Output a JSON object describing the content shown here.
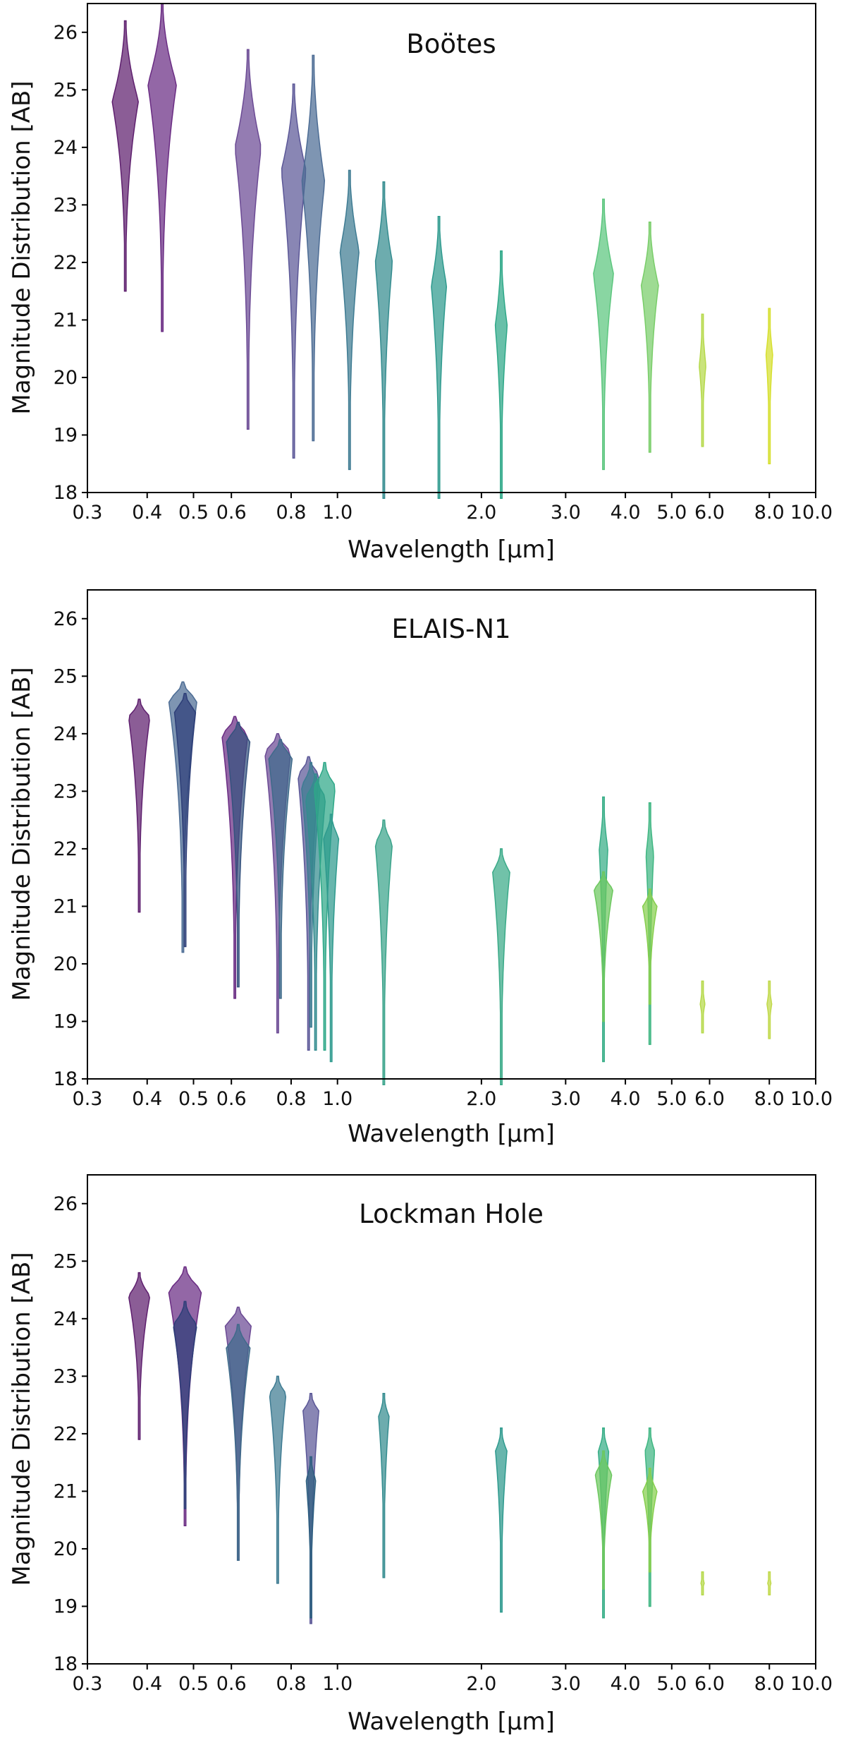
{
  "figure": {
    "xlabel": "Wavelength [μm]",
    "ylabel": "Magnitude Distribution [AB]"
  },
  "chart_data": [
    {
      "type": "violin",
      "title": "Boötes",
      "xlabel": "Wavelength [μm]",
      "ylabel": "Magnitude Distribution [AB]",
      "xscale": "log",
      "xlim": [
        0.3,
        10.0
      ],
      "ylim": [
        18,
        26.5
      ],
      "xticks": [
        0.3,
        0.4,
        0.5,
        0.6,
        0.8,
        1.0,
        2.0,
        3.0,
        4.0,
        5.0,
        6.0,
        8.0,
        10.0
      ],
      "xtick_labels": [
        "0.3",
        "0.4",
        "0.5",
        "0.6",
        "0.8",
        "1.0",
        "2.0",
        "3.0",
        "4.0",
        "5.0",
        "6.0",
        "8.0",
        "10.0"
      ],
      "yticks": [
        18,
        19,
        20,
        21,
        22,
        23,
        24,
        25,
        26
      ],
      "ytick_labels": [
        "18",
        "19",
        "20",
        "21",
        "22",
        "23",
        "24",
        "25",
        "26"
      ],
      "violins": [
        {
          "wavelength": 0.36,
          "min": 21.5,
          "max": 26.2,
          "peak": 24.8,
          "width": 0.055,
          "color": "#5e1f6e"
        },
        {
          "wavelength": 0.43,
          "min": 20.8,
          "max": 26.5,
          "peak": 25.1,
          "width": 0.06,
          "color": "#6a2c83"
        },
        {
          "wavelength": 0.65,
          "min": 19.1,
          "max": 25.7,
          "peak": 24.0,
          "width": 0.055,
          "color": "#6b4a94"
        },
        {
          "wavelength": 0.81,
          "min": 18.6,
          "max": 25.1,
          "peak": 23.6,
          "width": 0.052,
          "color": "#5b5797"
        },
        {
          "wavelength": 0.89,
          "min": 18.9,
          "max": 25.6,
          "peak": 23.4,
          "width": 0.048,
          "color": "#4c6c94"
        },
        {
          "wavelength": 1.06,
          "min": 18.4,
          "max": 23.6,
          "peak": 22.2,
          "width": 0.04,
          "color": "#3e7b92"
        },
        {
          "wavelength": 1.25,
          "min": 17.9,
          "max": 23.4,
          "peak": 22.0,
          "width": 0.036,
          "color": "#348c8f"
        },
        {
          "wavelength": 1.63,
          "min": 17.9,
          "max": 22.8,
          "peak": 21.6,
          "width": 0.032,
          "color": "#2e9a8e"
        },
        {
          "wavelength": 2.2,
          "min": 17.9,
          "max": 22.2,
          "peak": 20.9,
          "width": 0.025,
          "color": "#2ea888"
        },
        {
          "wavelength": 3.6,
          "min": 18.4,
          "max": 23.1,
          "peak": 21.8,
          "width": 0.042,
          "color": "#5cc67e"
        },
        {
          "wavelength": 4.5,
          "min": 18.7,
          "max": 22.7,
          "peak": 21.6,
          "width": 0.036,
          "color": "#79cd69"
        },
        {
          "wavelength": 5.8,
          "min": 18.8,
          "max": 21.1,
          "peak": 20.2,
          "width": 0.014,
          "color": "#b5d94a"
        },
        {
          "wavelength": 8.0,
          "min": 18.5,
          "max": 21.2,
          "peak": 20.4,
          "width": 0.014,
          "color": "#d6df2e"
        }
      ]
    },
    {
      "type": "violin",
      "title": "ELAIS-N1",
      "xlabel": "Wavelength [μm]",
      "ylabel": "Magnitude Distribution [AB]",
      "xscale": "log",
      "xlim": [
        0.3,
        10.0
      ],
      "ylim": [
        18,
        26.5
      ],
      "xticks": [
        0.3,
        0.4,
        0.5,
        0.6,
        0.8,
        1.0,
        2.0,
        3.0,
        4.0,
        5.0,
        6.0,
        8.0,
        10.0
      ],
      "xtick_labels": [
        "0.3",
        "0.4",
        "0.5",
        "0.6",
        "0.8",
        "1.0",
        "2.0",
        "3.0",
        "4.0",
        "5.0",
        "6.0",
        "8.0",
        "10.0"
      ],
      "yticks": [
        18,
        19,
        20,
        21,
        22,
        23,
        24,
        25,
        26
      ],
      "ytick_labels": [
        "18",
        "19",
        "20",
        "21",
        "22",
        "23",
        "24",
        "25",
        "26"
      ],
      "violins": [
        {
          "wavelength": 0.385,
          "min": 20.9,
          "max": 24.6,
          "peak": 24.3,
          "width": 0.045,
          "color": "#5e1f6e"
        },
        {
          "wavelength": 0.475,
          "min": 20.2,
          "max": 24.9,
          "peak": 24.6,
          "width": 0.06,
          "color": "#4c6c94"
        },
        {
          "wavelength": 0.48,
          "min": 20.3,
          "max": 24.7,
          "peak": 24.4,
          "width": 0.045,
          "color": "#2e3f78"
        },
        {
          "wavelength": 0.61,
          "min": 19.4,
          "max": 24.3,
          "peak": 24.0,
          "width": 0.055,
          "color": "#6a2c83"
        },
        {
          "wavelength": 0.62,
          "min": 19.6,
          "max": 24.2,
          "peak": 23.9,
          "width": 0.05,
          "color": "#35527e"
        },
        {
          "wavelength": 0.75,
          "min": 18.8,
          "max": 24.0,
          "peak": 23.7,
          "width": 0.055,
          "color": "#6b4a94"
        },
        {
          "wavelength": 0.76,
          "min": 19.4,
          "max": 23.9,
          "peak": 23.6,
          "width": 0.05,
          "color": "#3f6a8a"
        },
        {
          "wavelength": 0.87,
          "min": 18.5,
          "max": 23.6,
          "peak": 23.3,
          "width": 0.045,
          "color": "#5b5797"
        },
        {
          "wavelength": 0.88,
          "min": 18.9,
          "max": 23.5,
          "peak": 23.1,
          "width": 0.04,
          "color": "#3e7b92"
        },
        {
          "wavelength": 0.9,
          "min": 18.5,
          "max": 23.3,
          "peak": 22.9,
          "width": 0.042,
          "color": "#348c8f"
        },
        {
          "wavelength": 0.94,
          "min": 18.5,
          "max": 23.5,
          "peak": 23.1,
          "width": 0.045,
          "color": "#2ea888"
        },
        {
          "wavelength": 0.97,
          "min": 18.3,
          "max": 22.6,
          "peak": 22.2,
          "width": 0.032,
          "color": "#2e9a8e"
        },
        {
          "wavelength": 1.25,
          "min": 17.9,
          "max": 22.5,
          "peak": 22.1,
          "width": 0.036,
          "color": "#3aa38a"
        },
        {
          "wavelength": 2.2,
          "min": 17.9,
          "max": 22.0,
          "peak": 21.6,
          "width": 0.036,
          "color": "#3aaa88"
        },
        {
          "wavelength": 3.6,
          "min": 18.3,
          "max": 22.9,
          "peak": 22.0,
          "width": 0.018,
          "color": "#36ad86"
        },
        {
          "wavelength": 3.6,
          "min": 19.0,
          "max": 21.6,
          "peak": 21.3,
          "width": 0.04,
          "color": "#6cc75e"
        },
        {
          "wavelength": 4.5,
          "min": 18.6,
          "max": 22.8,
          "peak": 21.9,
          "width": 0.016,
          "color": "#3fb682"
        },
        {
          "wavelength": 4.5,
          "min": 19.3,
          "max": 21.3,
          "peak": 21.0,
          "width": 0.03,
          "color": "#86ce4e"
        },
        {
          "wavelength": 5.8,
          "min": 18.8,
          "max": 19.7,
          "peak": 19.3,
          "width": 0.01,
          "color": "#b5d94a"
        },
        {
          "wavelength": 8.0,
          "min": 18.7,
          "max": 19.7,
          "peak": 19.3,
          "width": 0.01,
          "color": "#c1d94a"
        }
      ]
    },
    {
      "type": "violin",
      "title": "Lockman Hole",
      "xlabel": "Wavelength [μm]",
      "ylabel": "Magnitude Distribution [AB]",
      "xscale": "log",
      "xlim": [
        0.3,
        10.0
      ],
      "ylim": [
        18,
        26.5
      ],
      "xticks": [
        0.3,
        0.4,
        0.5,
        0.6,
        0.8,
        1.0,
        2.0,
        3.0,
        4.0,
        5.0,
        6.0,
        8.0,
        10.0
      ],
      "xtick_labels": [
        "0.3",
        "0.4",
        "0.5",
        "0.6",
        "0.8",
        "1.0",
        "2.0",
        "3.0",
        "4.0",
        "5.0",
        "6.0",
        "8.0",
        "10.0"
      ],
      "yticks": [
        18,
        19,
        20,
        21,
        22,
        23,
        24,
        25,
        26
      ],
      "ytick_labels": [
        "18",
        "19",
        "20",
        "21",
        "22",
        "23",
        "24",
        "25",
        "26"
      ],
      "violins": [
        {
          "wavelength": 0.385,
          "min": 21.9,
          "max": 24.8,
          "peak": 24.4,
          "width": 0.045,
          "color": "#5e1f6e"
        },
        {
          "wavelength": 0.48,
          "min": 20.4,
          "max": 24.9,
          "peak": 24.5,
          "width": 0.07,
          "color": "#6a2c83"
        },
        {
          "wavelength": 0.48,
          "min": 20.7,
          "max": 24.3,
          "peak": 23.9,
          "width": 0.05,
          "color": "#2e3f78"
        },
        {
          "wavelength": 0.62,
          "min": 19.8,
          "max": 24.2,
          "peak": 23.9,
          "width": 0.055,
          "color": "#6b4a94"
        },
        {
          "wavelength": 0.62,
          "min": 19.8,
          "max": 23.9,
          "peak": 23.5,
          "width": 0.05,
          "color": "#3f6a8a"
        },
        {
          "wavelength": 0.75,
          "min": 19.4,
          "max": 23.0,
          "peak": 22.7,
          "width": 0.035,
          "color": "#3e7b92"
        },
        {
          "wavelength": 0.88,
          "min": 18.7,
          "max": 22.7,
          "peak": 22.4,
          "width": 0.033,
          "color": "#5b5797"
        },
        {
          "wavelength": 0.88,
          "min": 18.8,
          "max": 21.6,
          "peak": 21.2,
          "width": 0.02,
          "color": "#2e5f80"
        },
        {
          "wavelength": 1.25,
          "min": 19.5,
          "max": 22.7,
          "peak": 22.3,
          "width": 0.022,
          "color": "#348c8f"
        },
        {
          "wavelength": 2.2,
          "min": 18.9,
          "max": 22.1,
          "peak": 21.7,
          "width": 0.024,
          "color": "#2e9a8e"
        },
        {
          "wavelength": 3.6,
          "min": 18.8,
          "max": 22.1,
          "peak": 21.7,
          "width": 0.022,
          "color": "#36ad86"
        },
        {
          "wavelength": 3.6,
          "min": 19.3,
          "max": 21.7,
          "peak": 21.3,
          "width": 0.035,
          "color": "#6cc75e"
        },
        {
          "wavelength": 4.5,
          "min": 19.0,
          "max": 22.1,
          "peak": 21.7,
          "width": 0.02,
          "color": "#3fb682"
        },
        {
          "wavelength": 4.5,
          "min": 19.6,
          "max": 21.4,
          "peak": 21.0,
          "width": 0.03,
          "color": "#86ce4e"
        },
        {
          "wavelength": 5.8,
          "min": 19.2,
          "max": 19.6,
          "peak": 19.4,
          "width": 0.007,
          "color": "#b5d94a"
        },
        {
          "wavelength": 8.0,
          "min": 19.2,
          "max": 19.6,
          "peak": 19.4,
          "width": 0.007,
          "color": "#c1d94a"
        }
      ]
    }
  ]
}
